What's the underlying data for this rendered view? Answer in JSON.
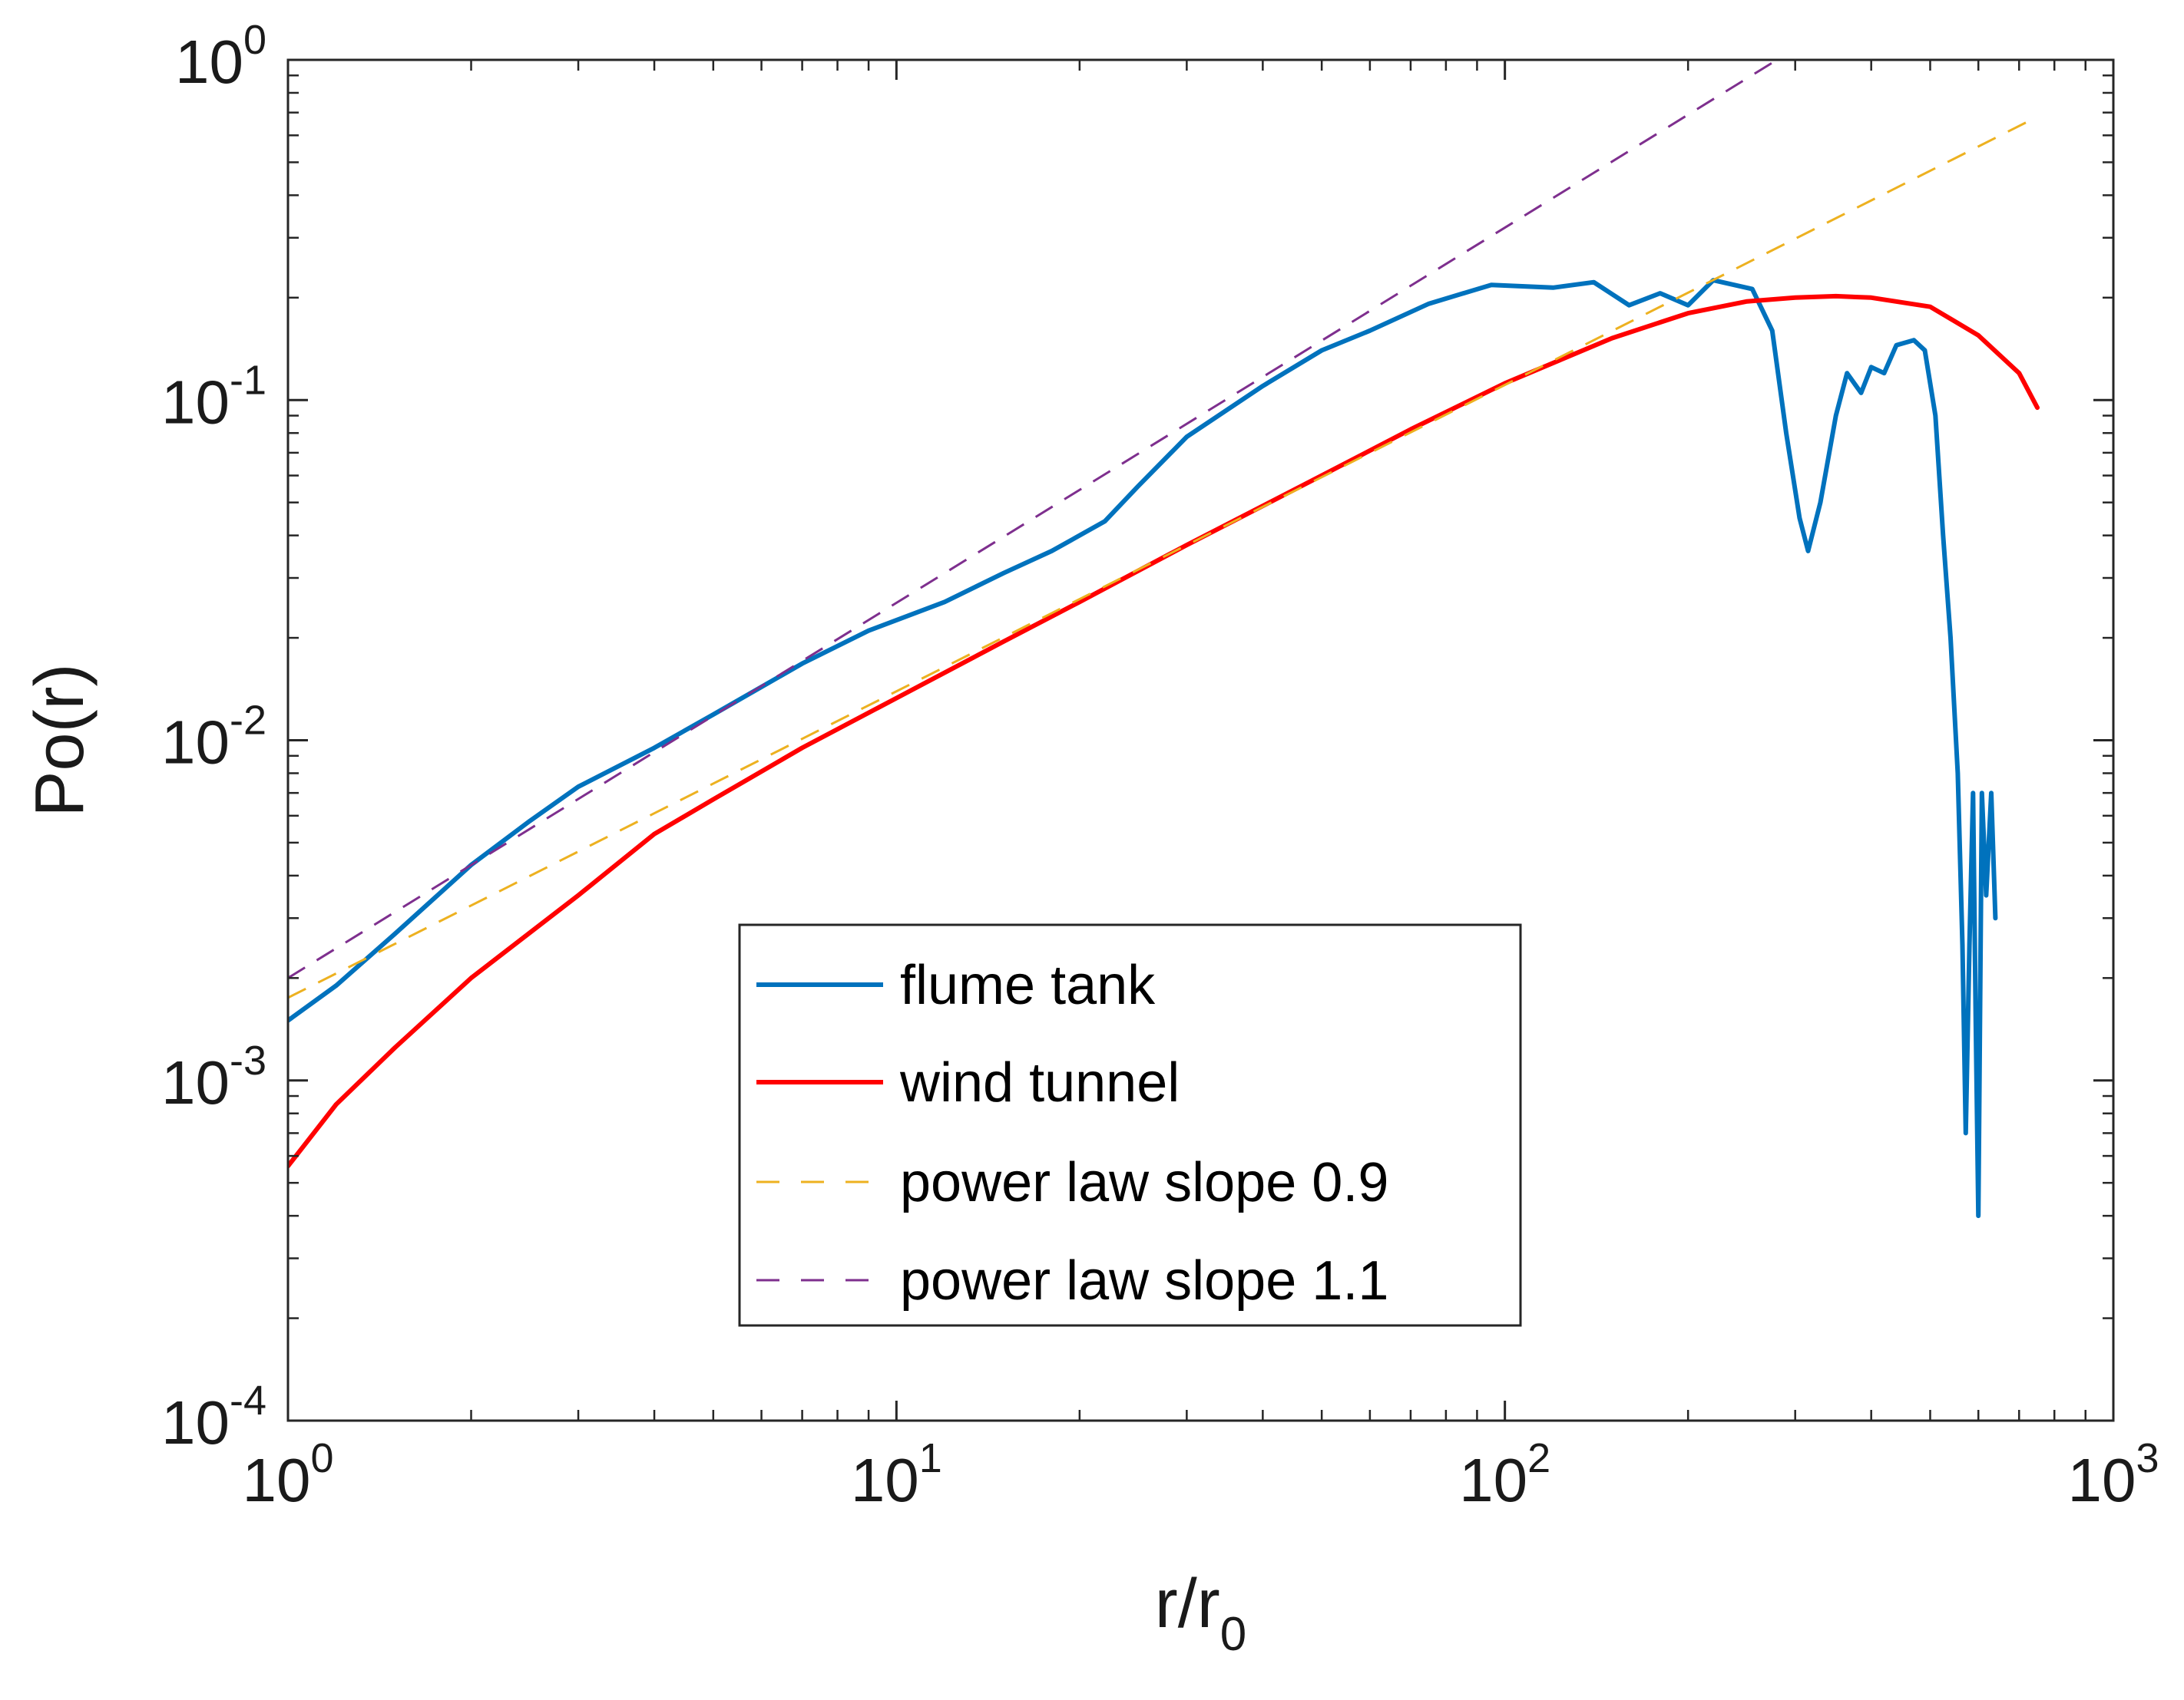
{
  "chart_data": {
    "type": "line",
    "xscale": "log",
    "yscale": "log",
    "xlim": [
      1,
      1000
    ],
    "ylim": [
      0.0001,
      1
    ],
    "xlabel": {
      "main": "r/r",
      "sub": "0"
    },
    "ylabel": "Po(r)",
    "x_ticks": [
      {
        "value": 1,
        "base": "10",
        "exp": "0"
      },
      {
        "value": 10,
        "base": "10",
        "exp": "1"
      },
      {
        "value": 100,
        "base": "10",
        "exp": "2"
      },
      {
        "value": 1000,
        "base": "10",
        "exp": "3"
      }
    ],
    "y_ticks": [
      {
        "value": 0.0001,
        "base": "10",
        "exp": "-4"
      },
      {
        "value": 0.001,
        "base": "10",
        "exp": "-3"
      },
      {
        "value": 0.01,
        "base": "10",
        "exp": "-2"
      },
      {
        "value": 0.1,
        "base": "10",
        "exp": "-1"
      },
      {
        "value": 1,
        "base": "10",
        "exp": "0"
      }
    ],
    "legend_position": "center-bottom",
    "series": [
      {
        "name": "flume tank",
        "color": "#0072BD",
        "style": "solid",
        "points": [
          [
            1.0,
            0.0015
          ],
          [
            1.2,
            0.0019
          ],
          [
            1.5,
            0.0027
          ],
          [
            2.0,
            0.0043
          ],
          [
            2.5,
            0.0058
          ],
          [
            3.0,
            0.0073
          ],
          [
            4.0,
            0.0095
          ],
          [
            5.0,
            0.0119
          ],
          [
            7.0,
            0.0168
          ],
          [
            9.0,
            0.021
          ],
          [
            12.0,
            0.0255
          ],
          [
            15.0,
            0.031
          ],
          [
            18.0,
            0.036
          ],
          [
            22.0,
            0.044
          ],
          [
            25.0,
            0.056
          ],
          [
            30.0,
            0.078
          ],
          [
            40.0,
            0.11
          ],
          [
            50.0,
            0.14
          ],
          [
            60.0,
            0.16
          ],
          [
            75.0,
            0.192
          ],
          [
            95.0,
            0.218
          ],
          [
            120.0,
            0.214
          ],
          [
            140.0,
            0.222
          ],
          [
            160.0,
            0.19
          ],
          [
            180.0,
            0.206
          ],
          [
            200.0,
            0.19
          ],
          [
            220.0,
            0.225
          ],
          [
            255.0,
            0.212
          ],
          [
            275.0,
            0.16
          ],
          [
            290.0,
            0.08
          ],
          [
            305.0,
            0.045
          ],
          [
            315.0,
            0.036
          ],
          [
            330.0,
            0.05
          ],
          [
            350.0,
            0.09
          ],
          [
            365.0,
            0.12
          ],
          [
            385.0,
            0.105
          ],
          [
            400.0,
            0.125
          ],
          [
            420.0,
            0.12
          ],
          [
            440.0,
            0.145
          ],
          [
            470.0,
            0.15
          ],
          [
            490.0,
            0.14
          ],
          [
            510.0,
            0.09
          ],
          [
            525.0,
            0.04
          ],
          [
            540.0,
            0.02
          ],
          [
            555.0,
            0.008
          ],
          [
            565.0,
            0.0025
          ],
          [
            572.0,
            0.0007
          ],
          [
            580.0,
            0.0025
          ],
          [
            588.0,
            0.007
          ],
          [
            594.0,
            0.0015
          ],
          [
            600.0,
            0.0004
          ],
          [
            608.0,
            0.007
          ],
          [
            618.0,
            0.0035
          ],
          [
            630.0,
            0.007
          ],
          [
            640.0,
            0.003
          ]
        ]
      },
      {
        "name": "wind tunnel",
        "color": "#FF0000",
        "style": "solid",
        "points": [
          [
            1.0,
            0.00056
          ],
          [
            1.2,
            0.00085
          ],
          [
            1.5,
            0.00125
          ],
          [
            2.0,
            0.002
          ],
          [
            3.0,
            0.0035
          ],
          [
            4.0,
            0.0053
          ],
          [
            5.0,
            0.0067
          ],
          [
            7.0,
            0.0095
          ],
          [
            10.0,
            0.0133
          ],
          [
            15.0,
            0.0195
          ],
          [
            20.0,
            0.0255
          ],
          [
            30.0,
            0.0375
          ],
          [
            50.0,
            0.06
          ],
          [
            70.0,
            0.082
          ],
          [
            100.0,
            0.112
          ],
          [
            150.0,
            0.152
          ],
          [
            200.0,
            0.18
          ],
          [
            250.0,
            0.195
          ],
          [
            300.0,
            0.2
          ],
          [
            350.0,
            0.202
          ],
          [
            400.0,
            0.2
          ],
          [
            500.0,
            0.188
          ],
          [
            600.0,
            0.155
          ],
          [
            700.0,
            0.12
          ],
          [
            750.0,
            0.095
          ]
        ]
      },
      {
        "name": "power law slope 0.9",
        "color": "#EDB120",
        "style": "dashed",
        "points": [
          [
            1.0,
            0.00175
          ],
          [
            750.0,
            0.68
          ]
        ]
      },
      {
        "name": "power law slope 1.1",
        "color": "#7E2F8E",
        "style": "dashed",
        "points": [
          [
            1.0,
            0.002
          ],
          [
            280.0,
            1.0
          ]
        ]
      }
    ]
  }
}
